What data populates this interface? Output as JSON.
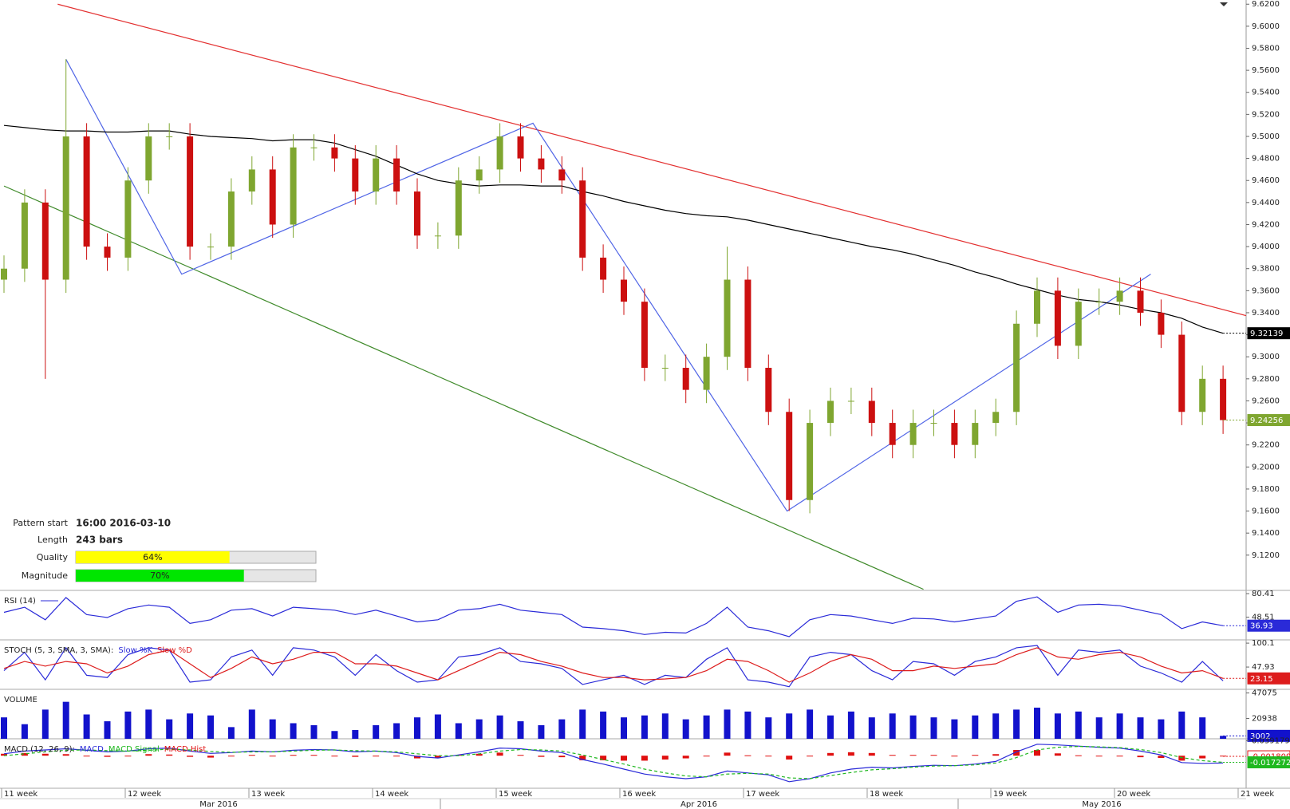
{
  "chart_data": [
    {
      "type": "candlestick",
      "ylim": [
        9.088,
        9.6238
      ],
      "yticks": [
        {
          "value": 9.12,
          "label": "9.1200"
        },
        {
          "value": 9.14,
          "label": "9.1400"
        },
        {
          "value": 9.16,
          "label": "9.1600"
        },
        {
          "value": 9.18,
          "label": "9.1800"
        },
        {
          "value": 9.2,
          "label": "9.2000"
        },
        {
          "value": 9.22,
          "label": "9.2200"
        },
        {
          "value": 9.24,
          "label": "9.2400"
        },
        {
          "value": 9.26,
          "label": "9.2600"
        },
        {
          "value": 9.28,
          "label": "9.2800"
        },
        {
          "value": 9.3,
          "label": "9.3000"
        },
        {
          "value": 9.32,
          "label": "9.3200"
        },
        {
          "value": 9.34,
          "label": "9.3400"
        },
        {
          "value": 9.36,
          "label": "9.3600"
        },
        {
          "value": 9.38,
          "label": "9.3800"
        },
        {
          "value": 9.4,
          "label": "9.4000"
        },
        {
          "value": 9.42,
          "label": "9.4200"
        },
        {
          "value": 9.44,
          "label": "9.4400"
        },
        {
          "value": 9.46,
          "label": "9.4600"
        },
        {
          "value": 9.48,
          "label": "9.4800"
        },
        {
          "value": 9.5,
          "label": "9.5000"
        },
        {
          "value": 9.52,
          "label": "9.5200"
        },
        {
          "value": 9.54,
          "label": "9.5400"
        },
        {
          "value": 9.56,
          "label": "9.5600"
        },
        {
          "value": 9.58,
          "label": "9.5800"
        },
        {
          "value": 9.6,
          "label": "9.6000"
        },
        {
          "value": 9.62,
          "label": "9.6200"
        }
      ],
      "up_color": "#7fa630",
      "down_color": "#cc1010",
      "open": [
        9.37,
        9.38,
        9.44,
        9.37,
        9.5,
        9.4,
        9.39,
        9.46,
        9.5,
        9.5,
        9.4,
        9.4,
        9.45,
        9.47,
        9.42,
        9.49,
        9.49,
        9.48,
        9.45,
        9.48,
        9.45,
        9.41,
        9.41,
        9.46,
        9.47,
        9.5,
        9.48,
        9.47,
        9.46,
        9.39,
        9.37,
        9.35,
        9.29,
        9.29,
        9.27,
        9.3,
        9.37,
        9.29,
        9.25,
        9.17,
        9.24,
        9.26,
        9.26,
        9.24,
        9.22,
        9.24,
        9.24,
        9.22,
        9.24,
        9.25,
        9.33,
        9.36,
        9.31,
        9.35,
        9.35,
        9.36,
        9.34,
        9.32,
        9.25,
        9.28
      ],
      "high": [
        9.392,
        9.452,
        9.452,
        9.57,
        9.512,
        9.412,
        9.472,
        9.512,
        9.512,
        9.512,
        9.412,
        9.462,
        9.482,
        9.482,
        9.502,
        9.502,
        9.502,
        9.492,
        9.492,
        9.492,
        9.462,
        9.422,
        9.472,
        9.482,
        9.512,
        9.512,
        9.492,
        9.482,
        9.472,
        9.402,
        9.382,
        9.362,
        9.302,
        9.302,
        9.312,
        9.4,
        9.382,
        9.302,
        9.262,
        9.252,
        9.272,
        9.272,
        9.272,
        9.252,
        9.252,
        9.252,
        9.252,
        9.252,
        9.262,
        9.342,
        9.372,
        9.372,
        9.362,
        9.362,
        9.372,
        9.372,
        9.352,
        9.332,
        9.292,
        9.292
      ],
      "low": [
        9.358,
        9.368,
        9.28,
        9.358,
        9.388,
        9.378,
        9.378,
        9.448,
        9.488,
        9.388,
        9.388,
        9.388,
        9.438,
        9.408,
        9.408,
        9.478,
        9.468,
        9.438,
        9.438,
        9.438,
        9.398,
        9.398,
        9.398,
        9.448,
        9.458,
        9.468,
        9.458,
        9.448,
        9.378,
        9.358,
        9.338,
        9.278,
        9.278,
        9.258,
        9.258,
        9.288,
        9.278,
        9.238,
        9.16,
        9.158,
        9.228,
        9.248,
        9.228,
        9.208,
        9.208,
        9.228,
        9.208,
        9.208,
        9.228,
        9.238,
        9.318,
        9.298,
        9.298,
        9.338,
        9.338,
        9.328,
        9.308,
        9.238,
        9.238,
        9.23
      ],
      "close": [
        9.38,
        9.44,
        9.37,
        9.5,
        9.4,
        9.39,
        9.46,
        9.5,
        9.5,
        9.4,
        9.4,
        9.45,
        9.47,
        9.42,
        9.49,
        9.49,
        9.48,
        9.45,
        9.48,
        9.45,
        9.41,
        9.41,
        9.46,
        9.47,
        9.5,
        9.48,
        9.47,
        9.46,
        9.39,
        9.37,
        9.35,
        9.29,
        9.29,
        9.27,
        9.3,
        9.37,
        9.29,
        9.25,
        9.17,
        9.24,
        9.26,
        9.26,
        9.24,
        9.22,
        9.24,
        9.24,
        9.22,
        9.24,
        9.25,
        9.33,
        9.36,
        9.31,
        9.35,
        9.35,
        9.36,
        9.34,
        9.32,
        9.25,
        9.28,
        9.24256
      ],
      "ma": {
        "color": "#000000",
        "values": [
          9.51,
          9.508,
          9.506,
          9.505,
          9.505,
          9.504,
          9.504,
          9.505,
          9.505,
          9.502,
          9.5,
          9.499,
          9.498,
          9.496,
          9.497,
          9.497,
          9.494,
          9.488,
          9.482,
          9.474,
          9.466,
          9.46,
          9.457,
          9.455,
          9.456,
          9.456,
          9.455,
          9.455,
          9.45,
          9.446,
          9.441,
          9.437,
          9.433,
          9.43,
          9.428,
          9.427,
          9.424,
          9.42,
          9.416,
          9.412,
          9.408,
          9.404,
          9.4,
          9.397,
          9.393,
          9.388,
          9.383,
          9.377,
          9.372,
          9.366,
          9.361,
          9.356,
          9.352,
          9.35,
          9.347,
          9.343,
          9.34,
          9.335,
          9.327,
          9.32139
        ]
      },
      "lines": [
        {
          "color": "#e33030",
          "points": [
            [
              2.6,
              9.62
            ],
            [
              60.6,
              9.335
            ]
          ]
        },
        {
          "color": "#3f8a2a",
          "points": [
            [
              0,
              9.455
            ],
            [
              44.5,
              9.089
            ]
          ]
        },
        {
          "color": "#5065e6",
          "points": [
            [
              3,
              9.57
            ],
            [
              8.6,
              9.375
            ],
            [
              25.6,
              9.512
            ],
            [
              37.9,
              9.16
            ],
            [
              55.5,
              9.375
            ]
          ]
        }
      ]
    },
    {
      "type": "line",
      "title": "RSI (14)",
      "ylim": [
        17.7,
        83.7
      ],
      "yticks": [
        48.51,
        80.41
      ],
      "series": [
        {
          "color": "#2a2ad8",
          "values": [
            55,
            62,
            45,
            75,
            52,
            48,
            60,
            65,
            62,
            40,
            45,
            58,
            60,
            50,
            62,
            60,
            58,
            52,
            58,
            50,
            42,
            45,
            58,
            60,
            66,
            58,
            55,
            52,
            35,
            33,
            30,
            25,
            28,
            27,
            40,
            62,
            35,
            30,
            22,
            45,
            52,
            50,
            45,
            40,
            47,
            46,
            42,
            46,
            50,
            70,
            76,
            55,
            65,
            66,
            64,
            58,
            52,
            33,
            42,
            36.93
          ]
        }
      ]
    },
    {
      "type": "line",
      "title": "STOCH (5, 3, SMA, 3, SMA):",
      "ylim": [
        -0.7,
        105.5
      ],
      "yticks": [
        47.93,
        100.1
      ],
      "series": [
        {
          "name": "Slow %K",
          "color": "#2a2ad8",
          "values": [
            40,
            80,
            20,
            90,
            30,
            25,
            75,
            90,
            85,
            15,
            20,
            70,
            85,
            30,
            90,
            85,
            70,
            30,
            75,
            40,
            15,
            20,
            70,
            75,
            90,
            60,
            55,
            45,
            10,
            20,
            30,
            10,
            30,
            25,
            65,
            90,
            20,
            15,
            5,
            70,
            80,
            75,
            40,
            20,
            60,
            55,
            30,
            60,
            70,
            90,
            95,
            30,
            85,
            80,
            85,
            50,
            35,
            15,
            60,
            18
          ]
        },
        {
          "name": "Slow %D",
          "color": "#dd1c1c",
          "values": [
            45,
            60,
            50,
            60,
            55,
            35,
            50,
            75,
            85,
            55,
            25,
            45,
            70,
            55,
            65,
            80,
            80,
            55,
            55,
            50,
            35,
            20,
            40,
            60,
            80,
            75,
            60,
            50,
            35,
            25,
            25,
            20,
            22,
            25,
            40,
            65,
            60,
            40,
            15,
            35,
            60,
            75,
            65,
            40,
            40,
            50,
            45,
            50,
            55,
            75,
            90,
            70,
            65,
            75,
            80,
            70,
            50,
            35,
            40,
            23.15
          ]
        }
      ]
    },
    {
      "type": "bar",
      "title": "VOLUME",
      "ylim": [
        0,
        50000
      ],
      "yticks": [
        20938,
        47075
      ],
      "color": "#1212cc",
      "values": [
        22000,
        15000,
        30000,
        38000,
        25000,
        18000,
        28000,
        30000,
        20000,
        26000,
        24000,
        12000,
        30000,
        20000,
        16000,
        14000,
        8000,
        9000,
        14000,
        16000,
        22000,
        25000,
        16000,
        20000,
        24000,
        18000,
        14000,
        20000,
        30000,
        28000,
        22000,
        24000,
        26000,
        20000,
        24000,
        30000,
        28000,
        22000,
        26000,
        30000,
        24000,
        28000,
        22000,
        26000,
        24000,
        22000,
        20000,
        24000,
        26000,
        30000,
        32000,
        26000,
        28000,
        22000,
        26000,
        22000,
        20000,
        28000,
        22000,
        3002
      ]
    },
    {
      "type": "macd",
      "title": "MACD (12, 26, 9):",
      "ylim": [
        -0.085,
        0.042
      ],
      "yticks": [
        0.0391791
      ],
      "series": [
        {
          "name": "MACD",
          "color": "#2a2ad8",
          "values": [
            0.005,
            0.012,
            0.015,
            0.018,
            0.014,
            0.01,
            0.012,
            0.018,
            0.02,
            0.012,
            0.006,
            0.008,
            0.012,
            0.01,
            0.014,
            0.016,
            0.015,
            0.01,
            0.012,
            0.008,
            -0.002,
            -0.006,
            0.002,
            0.01,
            0.02,
            0.018,
            0.012,
            0.008,
            -0.01,
            -0.022,
            -0.035,
            -0.048,
            -0.055,
            -0.06,
            -0.055,
            -0.04,
            -0.045,
            -0.05,
            -0.068,
            -0.06,
            -0.045,
            -0.035,
            -0.03,
            -0.032,
            -0.028,
            -0.025,
            -0.026,
            -0.022,
            -0.015,
            0.01,
            0.03,
            0.028,
            0.025,
            0.022,
            0.02,
            0.012,
            0.002,
            -0.018,
            -0.02,
            -0.019
          ]
        },
        {
          "name": "MACD Signal",
          "color": "#1fb81f",
          "values": [
            0.0,
            0.005,
            0.01,
            0.014,
            0.015,
            0.013,
            0.012,
            0.014,
            0.017,
            0.015,
            0.011,
            0.009,
            0.01,
            0.01,
            0.012,
            0.014,
            0.015,
            0.013,
            0.012,
            0.01,
            0.005,
            0.0,
            0.0,
            0.005,
            0.012,
            0.016,
            0.015,
            0.012,
            0.002,
            -0.01,
            -0.022,
            -0.035,
            -0.045,
            -0.053,
            -0.055,
            -0.048,
            -0.046,
            -0.048,
            -0.058,
            -0.06,
            -0.052,
            -0.044,
            -0.037,
            -0.034,
            -0.03,
            -0.027,
            -0.026,
            -0.024,
            -0.019,
            -0.005,
            0.015,
            0.022,
            0.024,
            0.023,
            0.021,
            0.016,
            0.008,
            -0.005,
            -0.013,
            -0.0172726
          ]
        },
        {
          "name": "MACD Hist",
          "color": "#e01010",
          "values": [
            0.005,
            0.007,
            0.005,
            0.004,
            -0.001,
            -0.003,
            0,
            0.004,
            0.003,
            -0.003,
            -0.005,
            -0.001,
            0.002,
            0,
            0.002,
            0.002,
            0,
            -0.003,
            0,
            -0.002,
            -0.007,
            -0.006,
            0.002,
            0.005,
            0.008,
            0.002,
            -0.003,
            -0.004,
            -0.012,
            -0.012,
            -0.013,
            -0.013,
            -0.01,
            -0.007,
            0,
            0.008,
            0.001,
            -0.002,
            -0.01,
            0,
            0.007,
            0.009,
            0.007,
            0.002,
            0.002,
            0.002,
            0,
            0.002,
            0.004,
            0.015,
            0.015,
            0.006,
            0.001,
            -0.001,
            -0.001,
            -0.004,
            -0.006,
            -0.013,
            -0.007,
            -0.0018094
          ]
        }
      ]
    }
  ],
  "x_axis": {
    "weeks": [
      "11 week",
      "12 week",
      "13 week",
      "14 week",
      "15 week",
      "16 week",
      "17 week",
      "18 week",
      "19 week",
      "20 week",
      "21 week"
    ],
    "months": [
      "Mar 2016",
      "Apr 2016",
      "May 2016"
    ]
  },
  "pattern": {
    "xlim": [
      0,
      100
    ],
    "rows": [
      {
        "label": "Pattern start",
        "value": "16:00 2016-03-10"
      },
      {
        "label": "Length",
        "value": "243 bars"
      },
      {
        "label": "Quality",
        "value": 64,
        "value_label": "64%",
        "color": "#ffff00"
      },
      {
        "label": "Magnitude",
        "value": 70,
        "value_label": "70%",
        "color": "#00e600"
      }
    ]
  }
}
